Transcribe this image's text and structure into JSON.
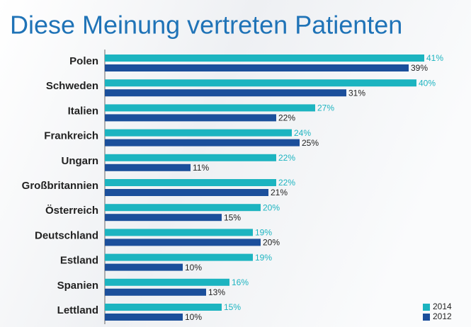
{
  "chart_data": {
    "type": "bar",
    "orientation": "horizontal",
    "title": "Diese Meinung vertreten Patienten",
    "categories": [
      "Polen",
      "Schweden",
      "Italien",
      "Frankreich",
      "Ungarn",
      "Großbritannien",
      "Österreich",
      "Deutschland",
      "Estland",
      "Spanien",
      "Lettland"
    ],
    "series": [
      {
        "name": "2014",
        "color": "#1cb4c0",
        "values": [
          41,
          40,
          27,
          24,
          22,
          22,
          20,
          19,
          19,
          16,
          15
        ],
        "value_labels": [
          "41%",
          "40%",
          "27%",
          "24%",
          "22%",
          "22%",
          "20%",
          "19%",
          "19%",
          "16%",
          "15%"
        ]
      },
      {
        "name": "2012",
        "color": "#1b4f9b",
        "values": [
          39,
          31,
          22,
          25,
          11,
          21,
          15,
          20,
          10,
          13,
          10
        ],
        "value_labels": [
          "39%",
          "31%",
          "22%",
          "25%",
          "11%",
          "21%",
          "15%",
          "20%",
          "10%",
          "13%",
          "10%"
        ]
      }
    ],
    "legend": "bottom-right"
  }
}
